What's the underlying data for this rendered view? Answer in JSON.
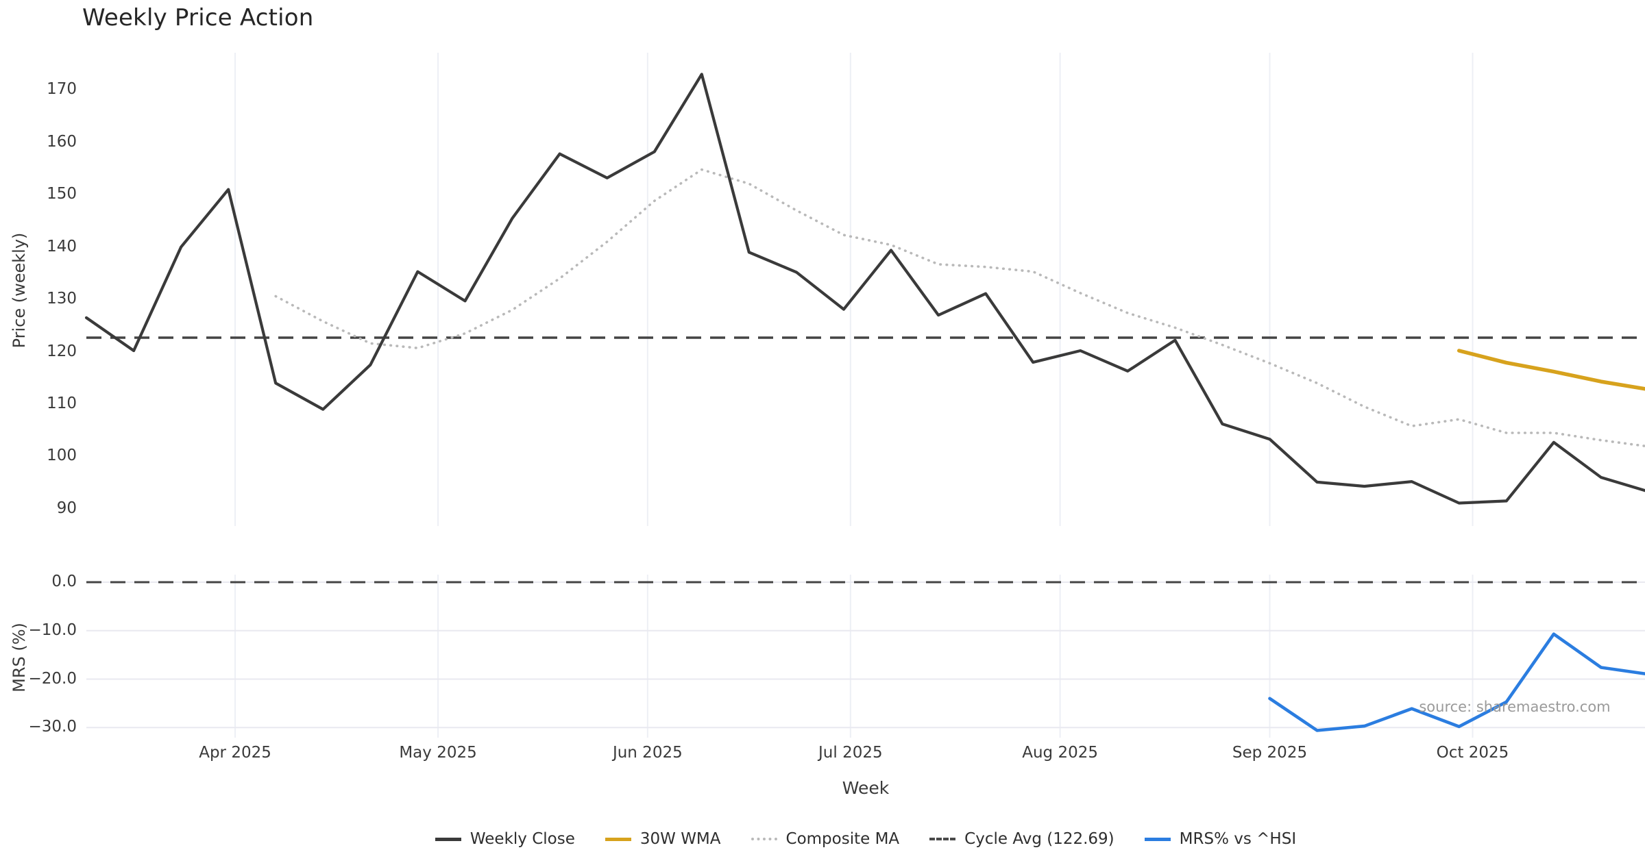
{
  "title": "Weekly Price Action",
  "xlabel": "Week",
  "watermark": "source: sharemaestro.com",
  "colors": {
    "weekly_close": "#3a3a3a",
    "wma_30w": "#d7a21d",
    "composite_ma": "#b9b9b9",
    "cycle_avg": "#444444",
    "mrs": "#2b7de0",
    "grid_vertical": "#edeff5",
    "grid_horizontal": "#e9e9f0"
  },
  "chart_data": [
    {
      "type": "line",
      "panel": "price",
      "title": "Weekly Price Action",
      "ylabel": "Price (weekly)",
      "ylim": [
        86.7,
        177.1
      ],
      "yticks": [
        170,
        160,
        150,
        140,
        130,
        120,
        110,
        100,
        90
      ],
      "ytick_labels": [
        "170",
        "160",
        "150",
        "140",
        "130",
        "120",
        "110",
        "100",
        "90"
      ],
      "grid": "vertical-months",
      "legend_position": "bottom-center",
      "x_dates": [
        "2025-03-10",
        "2025-03-17",
        "2025-03-24",
        "2025-03-31",
        "2025-04-07",
        "2025-04-14",
        "2025-04-21",
        "2025-04-28",
        "2025-05-05",
        "2025-05-12",
        "2025-05-19",
        "2025-05-26",
        "2025-06-02",
        "2025-06-09",
        "2025-06-16",
        "2025-06-23",
        "2025-06-30",
        "2025-07-07",
        "2025-07-14",
        "2025-07-21",
        "2025-07-28",
        "2025-08-04",
        "2025-08-11",
        "2025-08-18",
        "2025-08-25",
        "2025-09-01",
        "2025-09-08",
        "2025-09-15",
        "2025-09-22",
        "2025-09-29",
        "2025-10-06",
        "2025-10-13",
        "2025-10-20",
        "2025-10-27"
      ],
      "xtick_labels": [
        "Apr 2025",
        "May 2025",
        "Jun 2025",
        "Jul 2025",
        "Aug 2025",
        "Sep 2025",
        "Oct 2025"
      ],
      "series": [
        {
          "name": "Weekly Close",
          "style": "solid",
          "width": 4.2,
          "color": "#3a3a3a",
          "values": [
            126.5,
            120.2,
            140.0,
            151.0,
            114.0,
            109.0,
            117.5,
            135.3,
            129.7,
            145.5,
            157.8,
            153.2,
            158.2,
            173.0,
            139.0,
            135.2,
            128.1,
            139.4,
            127.0,
            131.1,
            118.0,
            120.2,
            116.3,
            122.2,
            106.2,
            103.3,
            95.1,
            94.3,
            95.2,
            91.1,
            91.5,
            102.7,
            96.0,
            93.3
          ]
        },
        {
          "name": "30W WMA",
          "style": "solid",
          "width": 5.5,
          "color": "#d7a21d",
          "values": [
            null,
            null,
            null,
            null,
            null,
            null,
            null,
            null,
            null,
            null,
            null,
            null,
            null,
            null,
            null,
            null,
            null,
            null,
            null,
            null,
            null,
            null,
            null,
            null,
            null,
            null,
            null,
            null,
            null,
            120.2,
            117.9,
            116.2,
            114.3,
            112.8
          ]
        },
        {
          "name": "Composite MA",
          "style": "dotted",
          "width": 3.6,
          "color": "#b9b9b9",
          "values": [
            null,
            null,
            null,
            null,
            130.6,
            125.8,
            121.6,
            120.7,
            123.5,
            128.0,
            134.0,
            141.0,
            148.8,
            154.8,
            152.1,
            147.0,
            142.3,
            140.4,
            136.7,
            136.2,
            135.3,
            131.2,
            127.4,
            124.6,
            121.3,
            117.8,
            114.0,
            109.5,
            105.8,
            107.1,
            104.5,
            104.5,
            103.1,
            101.9
          ]
        },
        {
          "name": "Cycle Avg (122.69)",
          "style": "dashed",
          "width": 3.4,
          "color": "#444444",
          "ref_value": 122.69
        }
      ]
    },
    {
      "type": "line",
      "panel": "mrs",
      "ylabel": "MRS (%)",
      "ylim": [
        -32.1,
        1.5
      ],
      "yticks": [
        0.0,
        -10.0,
        -20.0,
        -30.0
      ],
      "ytick_labels": [
        "0.0",
        "−10.0",
        "−20.0",
        "−30.0"
      ],
      "grid": "both",
      "series": [
        {
          "name": "MRS% vs ^HSI",
          "style": "solid",
          "width": 4.6,
          "color": "#2b7de0",
          "values": [
            null,
            null,
            null,
            null,
            null,
            null,
            null,
            null,
            null,
            null,
            null,
            null,
            null,
            null,
            null,
            null,
            null,
            null,
            null,
            null,
            null,
            null,
            null,
            null,
            null,
            -24.0,
            -30.6,
            -29.7,
            -26.1,
            -29.8,
            -24.7,
            -10.7,
            -17.6,
            -19.0
          ]
        },
        {
          "name": "Zero Line",
          "style": "dashed",
          "width": 3.0,
          "color": "#444444",
          "ref_value": 0.0
        }
      ]
    }
  ],
  "legend": {
    "items": [
      {
        "label": "Weekly Close",
        "color": "#3a3a3a",
        "style": "solid"
      },
      {
        "label": "30W WMA",
        "color": "#d7a21d",
        "style": "solid"
      },
      {
        "label": "Composite MA",
        "color": "#b9b9b9",
        "style": "dotted"
      },
      {
        "label": "Cycle Avg (122.69)",
        "color": "#4a4a4a",
        "style": "dashed"
      },
      {
        "label": "MRS% vs ^HSI",
        "color": "#2b7de0",
        "style": "solid"
      }
    ]
  }
}
